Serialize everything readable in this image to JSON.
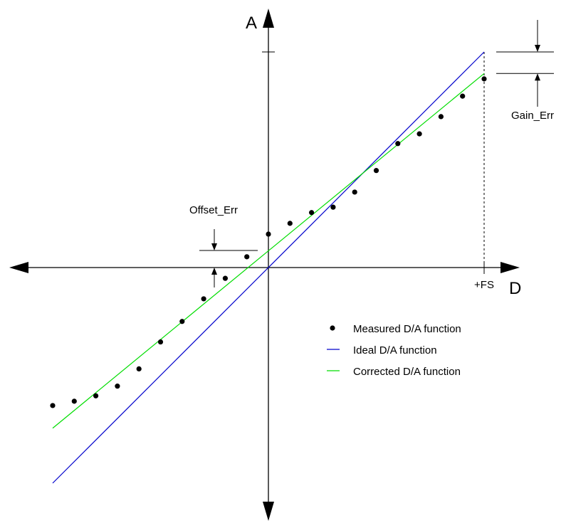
{
  "chart_data": {
    "type": "line",
    "y_axis_label": "A",
    "x_axis_label": "D",
    "x_tick_label": "+FS",
    "annotations": {
      "offset": "Offset_Err",
      "gain": "Gain_Err"
    },
    "xlim": [
      -1,
      1
    ],
    "ylim": [
      -1,
      1
    ],
    "series": [
      {
        "name": "Measured D/A function",
        "kind": "points",
        "color": "#000000",
        "points": [
          [
            -1.0,
            -0.64
          ],
          [
            -0.9,
            -0.62
          ],
          [
            -0.8,
            -0.595
          ],
          [
            -0.7,
            -0.55
          ],
          [
            -0.6,
            -0.47
          ],
          [
            -0.5,
            -0.345
          ],
          [
            -0.4,
            -0.25
          ],
          [
            -0.3,
            -0.145
          ],
          [
            -0.2,
            -0.05
          ],
          [
            -0.1,
            0.05
          ],
          [
            0.0,
            0.155
          ],
          [
            0.1,
            0.205
          ],
          [
            0.2,
            0.255
          ],
          [
            0.3,
            0.28
          ],
          [
            0.4,
            0.35
          ],
          [
            0.5,
            0.45
          ],
          [
            0.6,
            0.575
          ],
          [
            0.7,
            0.62
          ],
          [
            0.8,
            0.7
          ],
          [
            0.9,
            0.795
          ],
          [
            1.0,
            0.875
          ]
        ]
      },
      {
        "name": "Ideal D/A function",
        "kind": "line",
        "color": "#0000cc",
        "points": [
          [
            -1.0,
            -1.0
          ],
          [
            1.0,
            1.0
          ]
        ]
      },
      {
        "name": "Corrected D/A function",
        "kind": "line",
        "color": "#00dd00",
        "points": [
          [
            -1.0,
            -0.745
          ],
          [
            1.0,
            0.9
          ]
        ]
      }
    ],
    "offset_error": 0.08,
    "gain_error_at_fs": 0.1,
    "legend_position": "lower-right",
    "grid": false
  }
}
